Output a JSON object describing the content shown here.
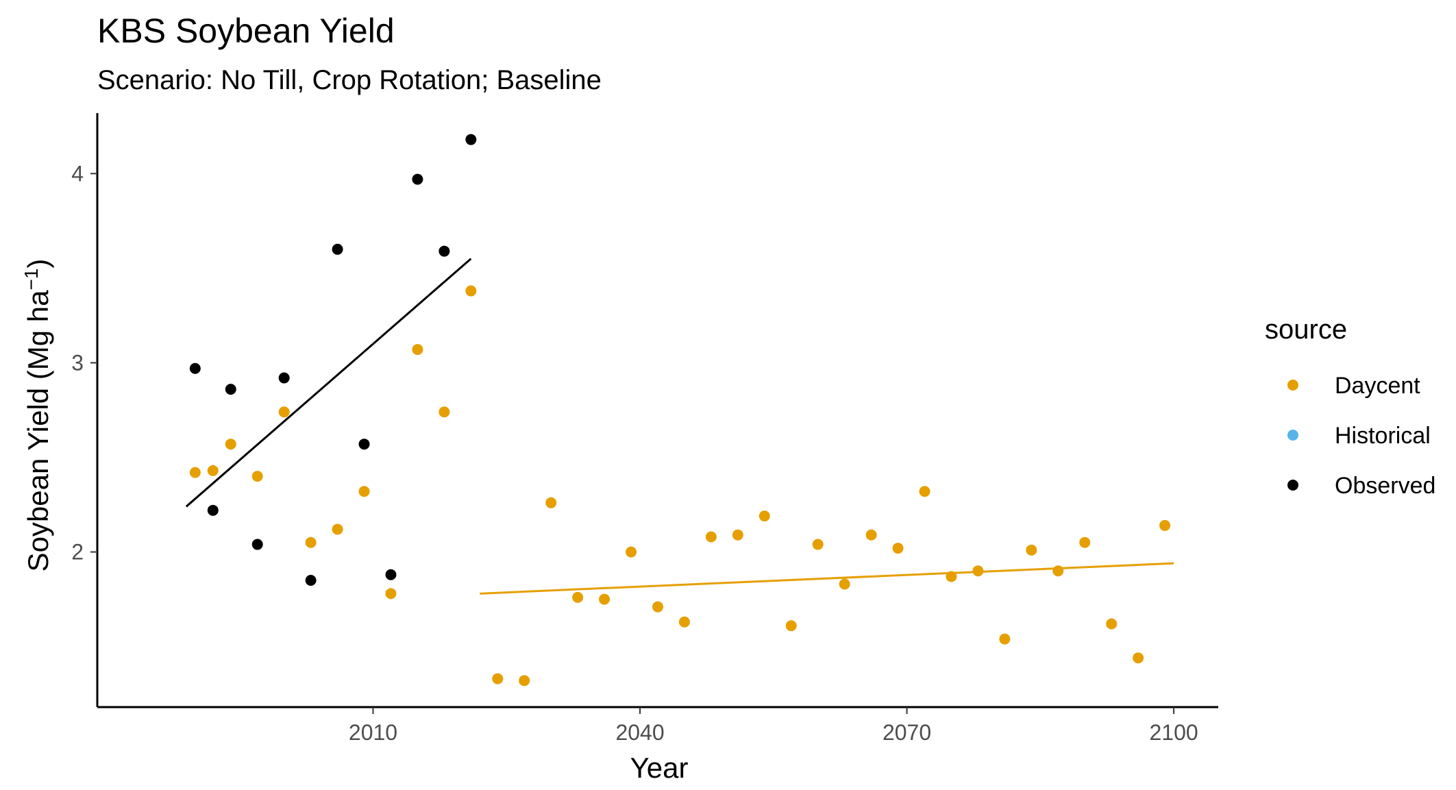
{
  "chart_data": {
    "type": "scatter",
    "title": "KBS Soybean Yield",
    "subtitle": "Scenario: No Till, Crop Rotation; Baseline",
    "xlabel": "Year",
    "ylabel": "Soybean Yield (Mg ha",
    "ylabel_superscript": "−1",
    "ylabel_suffix": ")",
    "xlim": [
      1979,
      2105
    ],
    "ylim": [
      1.18,
      4.32
    ],
    "x_ticks": [
      2010,
      2040,
      2070,
      2100
    ],
    "x_tick_labels": [
      "2010",
      "2040",
      "2070",
      "2100"
    ],
    "y_ticks": [
      2,
      3,
      4
    ],
    "y_tick_labels": [
      "2",
      "3",
      "4"
    ],
    "grid": false,
    "legend": {
      "title": "source",
      "placement": "right",
      "entries": [
        {
          "label": "Daycent",
          "color": "#E69F00"
        },
        {
          "label": "Historical",
          "color": "#56B4E9"
        },
        {
          "label": "Observed",
          "color": "#000000"
        }
      ]
    },
    "series": [
      {
        "name": "Daycent",
        "color": "#E69F00",
        "x": [
          1990,
          1992,
          1994,
          1997,
          2000,
          2003,
          2006,
          2009,
          2012,
          2015,
          2018,
          2021,
          2024,
          2027,
          2030,
          2033,
          2036,
          2039,
          2042,
          2045,
          2048,
          2051,
          2054,
          2057,
          2060,
          2063,
          2066,
          2069,
          2072,
          2075,
          2078,
          2081,
          2084,
          2087,
          2090,
          2093,
          2096,
          2099
        ],
        "y": [
          2.42,
          2.43,
          2.57,
          2.4,
          2.74,
          2.05,
          2.12,
          2.32,
          1.78,
          3.07,
          2.74,
          3.38,
          1.33,
          1.32,
          2.26,
          1.76,
          1.75,
          2.0,
          1.71,
          1.63,
          2.08,
          2.09,
          2.19,
          1.61,
          2.04,
          1.83,
          2.09,
          2.02,
          2.32,
          1.87,
          1.9,
          1.54,
          2.01,
          1.9,
          2.05,
          1.62,
          1.44,
          2.14
        ]
      },
      {
        "name": "Historical",
        "color": "#56B4E9",
        "x": [],
        "y": []
      },
      {
        "name": "Observed",
        "color": "#000000",
        "x": [
          1990,
          1992,
          1994,
          1997,
          2000,
          2003,
          2006,
          2009,
          2012,
          2015,
          2018,
          2021
        ],
        "y": [
          2.97,
          2.22,
          2.86,
          2.04,
          2.92,
          1.85,
          3.6,
          2.57,
          1.88,
          3.97,
          3.59,
          4.18
        ]
      }
    ],
    "trend_lines": [
      {
        "series": "Observed",
        "color": "#000000",
        "x": [
          1989,
          2021
        ],
        "y": [
          2.24,
          3.55
        ]
      },
      {
        "series": "Daycent",
        "color": "#E69F00",
        "x": [
          2022,
          2100
        ],
        "y": [
          1.78,
          1.94
        ]
      }
    ]
  }
}
